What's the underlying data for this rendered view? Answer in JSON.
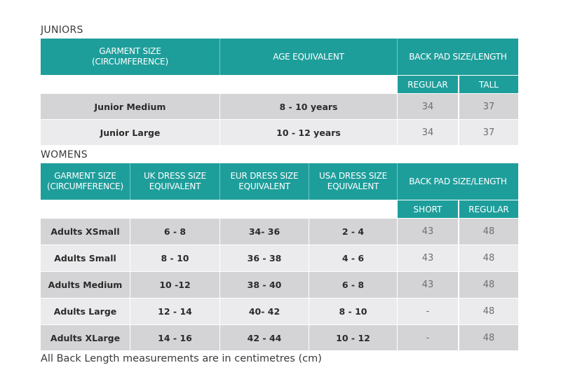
{
  "juniors": {
    "title": "JUNIORS",
    "headers": {
      "garment": "GARMENT SIZE\n(CIRCUMFERENCE)",
      "age": "AGE EQUIVALENT",
      "backpad": "BACK PAD SIZE/LENGTH",
      "regular": "REGULAR",
      "tall": "TALL"
    },
    "rows": [
      {
        "garment": "Junior Medium",
        "age": "8 - 10 years",
        "regular": "34",
        "tall": "37"
      },
      {
        "garment": "Junior Large",
        "age": "10 - 12 years",
        "regular": "34",
        "tall": "37"
      }
    ]
  },
  "womens": {
    "title": "WOMENS",
    "headers": {
      "garment": "GARMENT SIZE\n(CIRCUMFERENCE)",
      "uk": "UK DRESS SIZE\nEQUIVALENT",
      "eur": "EUR DRESS SIZE\nEQUIVALENT",
      "usa": "USA DRESS SIZE\nEQUIVALENT",
      "backpad": "BACK PAD SIZE/LENGTH",
      "short": "SHORT",
      "regular": "REGULAR"
    },
    "rows": [
      {
        "garment": "Adults XSmall",
        "uk": "6 - 8",
        "eur": "34- 36",
        "usa": "2 - 4",
        "short": "43",
        "regular": "48"
      },
      {
        "garment": "Adults Small",
        "uk": "8 - 10",
        "eur": "36 - 38",
        "usa": "4 - 6",
        "short": "43",
        "regular": "48"
      },
      {
        "garment": "Adults Medium",
        "uk": "10 -12",
        "eur": "38 - 40",
        "usa": "6 - 8",
        "short": "43",
        "regular": "48"
      },
      {
        "garment": "Adults Large",
        "uk": "12 - 14",
        "eur": "40- 42",
        "usa": "8 - 10",
        "short": "-",
        "regular": "48"
      },
      {
        "garment": "Adults XLarge",
        "uk": "14 - 16",
        "eur": "42 - 44",
        "usa": "10 - 12",
        "short": "-",
        "regular": "48"
      }
    ]
  },
  "footnote": "All Back Length measurements are in centimetres (cm)",
  "colors": {
    "header": "#1e9e9b",
    "row_dark": "#d4d4d6",
    "row_light": "#ebebed"
  }
}
